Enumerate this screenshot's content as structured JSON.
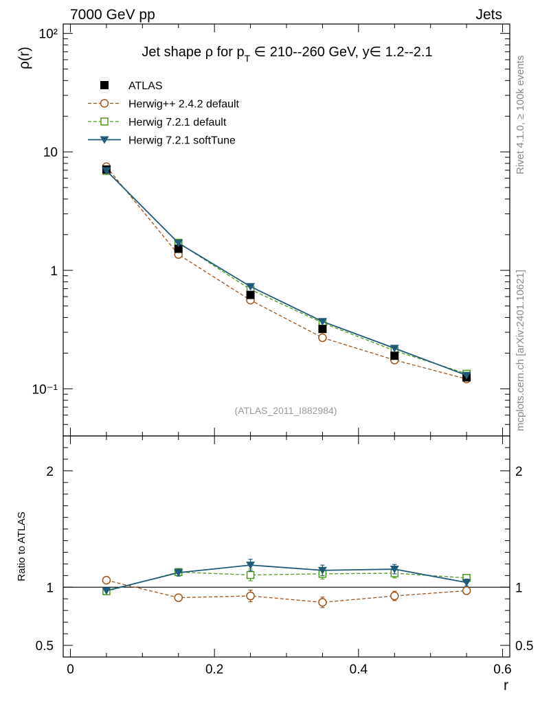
{
  "header": {
    "left": "7000 GeV pp",
    "right": "Jets"
  },
  "side_labels": {
    "rivet": "Rivet 4.1.0, ≥ 100k events",
    "mcplots": "mcplots.cern.ch [arXiv:2401.10621]"
  },
  "watermark": "(ATLAS_2011_I882984)",
  "chart_data": {
    "type": "line",
    "title_parts": {
      "prefix": "Jet shape ρ for p",
      "subscript": "T",
      "suffix": " ∈ 210--260 GeV, y∈ 1.2--2.1"
    },
    "xlabel": "r",
    "ylabel": "ρ(r)",
    "ratio_ylabel": "Ratio to ATLAS",
    "xlim": [
      -0.01,
      0.61
    ],
    "ylim_log": [
      0.04,
      120
    ],
    "ratio_ylim": [
      0.4,
      2.3
    ],
    "x_ticks": [
      "0",
      "0.2",
      "0.4",
      "0.6"
    ],
    "x_tick_values": [
      0,
      0.2,
      0.4,
      0.6
    ],
    "y_ticks": [
      "10²",
      "10",
      "1",
      "10⁻¹"
    ],
    "y_tick_values": [
      100,
      10,
      1,
      0.1
    ],
    "ratio_ticks": [
      "2",
      "1",
      "0.5"
    ],
    "ratio_tick_values": [
      2,
      1,
      0.5
    ],
    "x": [
      0.05,
      0.15,
      0.25,
      0.35,
      0.45,
      0.55
    ],
    "series": [
      {
        "name": "ATLAS",
        "color": "#000000",
        "marker": "square-filled",
        "line": "none",
        "values": [
          7.1,
          1.52,
          0.62,
          0.32,
          0.19,
          0.125
        ],
        "ratio": [
          1.0,
          1.0,
          1.0,
          1.0,
          1.0,
          1.0
        ]
      },
      {
        "name": "Herwig++ 2.4.2 default",
        "color": "#a0521a",
        "marker": "circle-open",
        "line": "dashed",
        "values": [
          7.5,
          1.36,
          0.56,
          0.27,
          0.175,
          0.121
        ],
        "ratio": [
          1.06,
          0.91,
          0.925,
          0.87,
          0.925,
          0.97
        ]
      },
      {
        "name": "Herwig 7.2.1 default",
        "color": "#4a9a1a",
        "marker": "square-open",
        "line": "dashed",
        "values": [
          6.9,
          1.71,
          0.69,
          0.36,
          0.21,
          0.134
        ],
        "ratio": [
          0.965,
          1.13,
          1.105,
          1.115,
          1.12,
          1.08
        ]
      },
      {
        "name": "Herwig 7.2.1 softTune",
        "color": "#1f5a78",
        "marker": "triangle-down-filled",
        "line": "solid",
        "values": [
          6.95,
          1.7,
          0.73,
          0.37,
          0.22,
          0.13
        ],
        "ratio": [
          0.97,
          1.125,
          1.19,
          1.145,
          1.155,
          1.04
        ]
      }
    ],
    "ratio_errors": [
      0,
      0.03,
      0.05,
      0.045,
      0.04,
      0.03
    ]
  }
}
